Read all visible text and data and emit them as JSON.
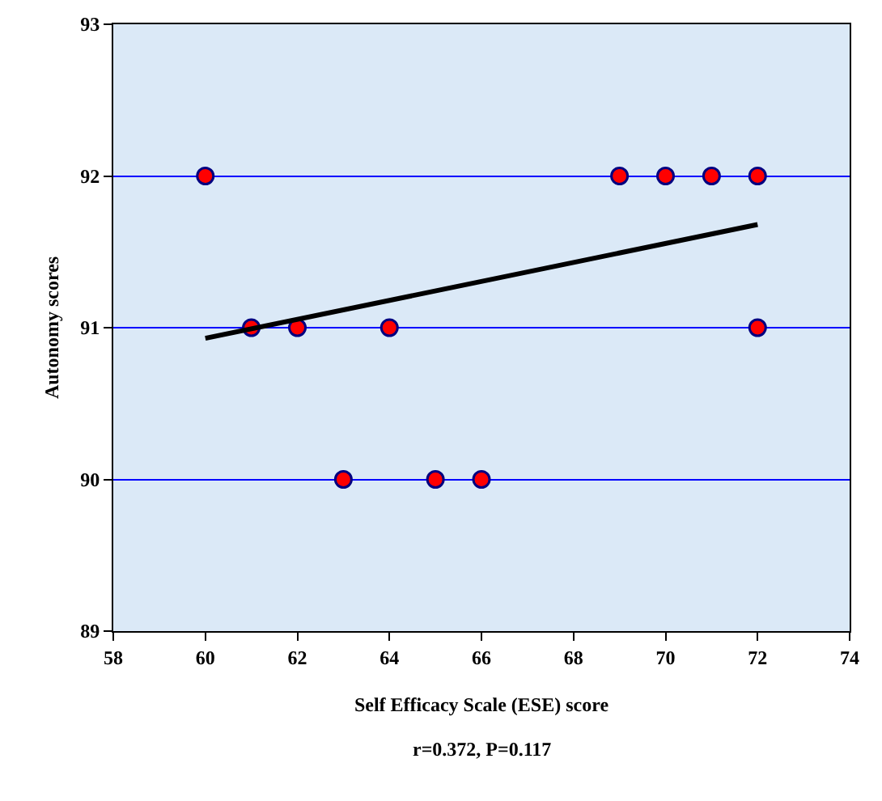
{
  "chart_data": {
    "type": "scatter",
    "xlabel": "Self Efficacy Scale (ESE) score",
    "ylabel": "Autonomy scores",
    "annotations": [
      "r=0.372, P=0.117"
    ],
    "x": [
      60,
      61,
      62,
      63,
      64,
      65,
      66,
      69,
      70,
      71,
      72,
      72
    ],
    "series": [
      {
        "color": "#ff0000",
        "values": [
          92,
          91,
          91,
          90,
          91,
          90,
          90,
          92,
          92,
          92,
          92,
          91
        ],
        "marker": "circle"
      },
      {
        "type": "line",
        "color": "#000000",
        "x": [
          60,
          72
        ],
        "values": [
          90.93,
          91.68
        ],
        "marker": "none",
        "line_style": "solid"
      }
    ],
    "xlim": [
      58,
      74
    ],
    "xticks": [
      58,
      60,
      62,
      64,
      66,
      68,
      70,
      72,
      74
    ],
    "ylim": [
      89,
      93
    ],
    "yticks": [
      89,
      90,
      91,
      92,
      93
    ],
    "grid": "y",
    "legend": false
  }
}
